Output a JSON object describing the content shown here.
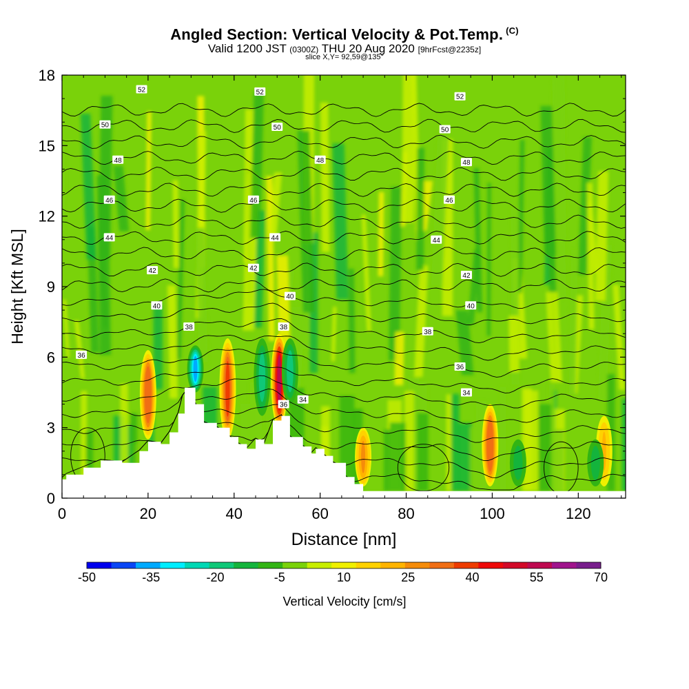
{
  "header": {
    "title": "Angled Section: Vertical Velocity & Pot.Temp.",
    "title_unit": "(C)",
    "valid_prefix": "Valid 1200 JST",
    "valid_utc": "(0300Z)",
    "valid_date": "THU 20 Aug 2020",
    "forecast": "[9hrFcst@2235z]",
    "slice": "slice X,Y= 92,59@135°"
  },
  "chart_data": {
    "type": "heatmap",
    "title": "Angled Section: Vertical Velocity & Pot.Temp. (C)",
    "xlabel": "Distance [nm]",
    "ylabel": "Height [Kft MSL]",
    "xlim": [
      0,
      131
    ],
    "ylim": [
      0,
      18
    ],
    "x_ticks": [
      0,
      20,
      40,
      60,
      80,
      100,
      120
    ],
    "y_ticks": [
      0,
      3,
      6,
      9,
      12,
      15,
      18
    ],
    "colorbar": {
      "label": "Vertical Velocity [cm/s]",
      "tick_labels": [
        "-50",
        "-35",
        "-20",
        "-5",
        "10",
        "25",
        "40",
        "55",
        "70"
      ],
      "colors": [
        "#0000ee",
        "#0a46f5",
        "#00aaff",
        "#00eeff",
        "#00d8b4",
        "#0fc878",
        "#14b43c",
        "#32b414",
        "#7ad20a",
        "#c8ee00",
        "#f0f000",
        "#ffd200",
        "#ffb400",
        "#f58c0a",
        "#f06e14",
        "#ee3c00",
        "#ee0a0a",
        "#d20a28",
        "#be0a50",
        "#a0148c",
        "#781e8c"
      ]
    },
    "terrain": [
      [
        0,
        0.8
      ],
      [
        1,
        1
      ],
      [
        5,
        1.3
      ],
      [
        9,
        1.6
      ],
      [
        14,
        1.5
      ],
      [
        18,
        2
      ],
      [
        20,
        2.4
      ],
      [
        23,
        2.3
      ],
      [
        25,
        2.8
      ],
      [
        27,
        3.6
      ],
      [
        28.5,
        4.7
      ],
      [
        31,
        4
      ],
      [
        33,
        3.2
      ],
      [
        36,
        3
      ],
      [
        39,
        2.6
      ],
      [
        41,
        2.3
      ],
      [
        43,
        2.1
      ],
      [
        45,
        2.5
      ],
      [
        47,
        2.3
      ],
      [
        49,
        3.3
      ],
      [
        51,
        3.5
      ],
      [
        53,
        2.6
      ],
      [
        56,
        2.2
      ],
      [
        58,
        1.9
      ],
      [
        59,
        2.1
      ],
      [
        61,
        1.8
      ],
      [
        63,
        1.5
      ],
      [
        66,
        0.9
      ],
      [
        68,
        0.6
      ],
      [
        70,
        0.3
      ],
      [
        131,
        0.3
      ]
    ],
    "updraft_cores": [
      {
        "x": 20,
        "bottom": 2.5,
        "top": 6.3,
        "peak": 35
      },
      {
        "x": 38.5,
        "bottom": 2.5,
        "top": 6.8,
        "peak": 40
      },
      {
        "x": 50.5,
        "bottom": 3.0,
        "top": 7.0,
        "peak": 55
      },
      {
        "x": 70,
        "bottom": 0.5,
        "top": 3.0,
        "peak": 25
      },
      {
        "x": 99.5,
        "bottom": 0.5,
        "top": 4.0,
        "peak": 35
      },
      {
        "x": 126,
        "bottom": 0.5,
        "top": 3.5,
        "peak": 20
      }
    ],
    "downdraft_cores": [
      {
        "x": 31,
        "bottom": 4.5,
        "top": 6.5,
        "peak": -35
      },
      {
        "x": 46.5,
        "bottom": 3.5,
        "top": 6.8,
        "peak": -20
      },
      {
        "x": 53,
        "bottom": 4.0,
        "top": 6.8,
        "peak": -20
      },
      {
        "x": 106,
        "bottom": 0.5,
        "top": 2.5,
        "peak": -15
      },
      {
        "x": 124,
        "bottom": 0.5,
        "top": 2.5,
        "peak": -15
      }
    ],
    "isentrope_labels": [
      {
        "text": "52",
        "x": 18.5,
        "y": 17.4
      },
      {
        "text": "52",
        "x": 46,
        "y": 17.3
      },
      {
        "text": "52",
        "x": 92.5,
        "y": 17.1
      },
      {
        "text": "50",
        "x": 10,
        "y": 15.9
      },
      {
        "text": "50",
        "x": 50,
        "y": 15.8
      },
      {
        "text": "50",
        "x": 89,
        "y": 15.7
      },
      {
        "text": "48",
        "x": 13,
        "y": 14.4
      },
      {
        "text": "48",
        "x": 60,
        "y": 14.4
      },
      {
        "text": "48",
        "x": 94,
        "y": 14.3
      },
      {
        "text": "46",
        "x": 11,
        "y": 12.7
      },
      {
        "text": "46",
        "x": 44.5,
        "y": 12.7
      },
      {
        "text": "46",
        "x": 90,
        "y": 12.7
      },
      {
        "text": "44",
        "x": 11,
        "y": 11.1
      },
      {
        "text": "44",
        "x": 49.5,
        "y": 11.1
      },
      {
        "text": "44",
        "x": 87,
        "y": 11
      },
      {
        "text": "42",
        "x": 21,
        "y": 9.7
      },
      {
        "text": "42",
        "x": 44.5,
        "y": 9.8
      },
      {
        "text": "42",
        "x": 94,
        "y": 9.5
      },
      {
        "text": "40",
        "x": 22,
        "y": 8.2
      },
      {
        "text": "40",
        "x": 53,
        "y": 8.6
      },
      {
        "text": "40",
        "x": 95,
        "y": 8.2
      },
      {
        "text": "38",
        "x": 29.5,
        "y": 7.3
      },
      {
        "text": "38",
        "x": 51.5,
        "y": 7.3
      },
      {
        "text": "38",
        "x": 85,
        "y": 7.1
      },
      {
        "text": "36",
        "x": 4.5,
        "y": 6.1
      },
      {
        "text": "36",
        "x": 92.5,
        "y": 5.6
      },
      {
        "text": "36",
        "x": 51.5,
        "y": 4.0
      },
      {
        "text": "34",
        "x": 56,
        "y": 4.2
      },
      {
        "text": "34",
        "x": 94,
        "y": 4.5
      }
    ]
  }
}
